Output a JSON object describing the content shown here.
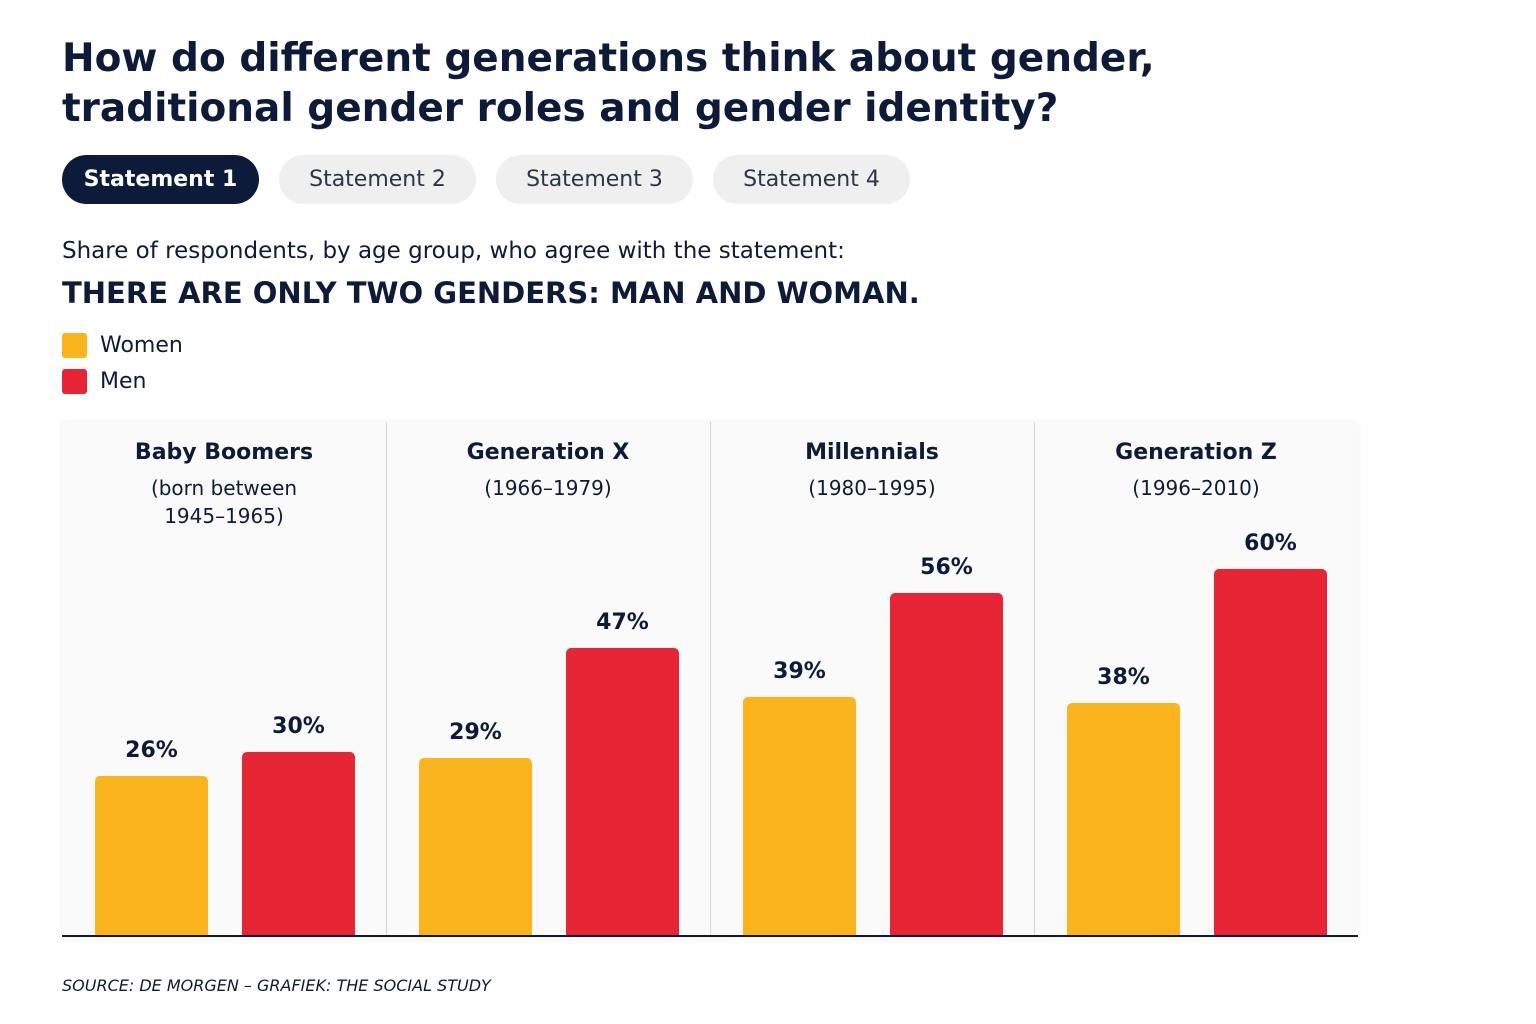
{
  "title": "How do different generations think about gender, traditional gender roles and gender identity?",
  "tabs": [
    "Statement 1",
    "Statement 2",
    "Statement 3",
    "Statement 4"
  ],
  "active_tab": 0,
  "chart_data": {
    "type": "bar",
    "subtitle": "Share of respondents, by age group, who agree with the statement:",
    "statement": "THERE ARE ONLY TWO GENDERS: MAN AND WOMAN.",
    "categories": [
      "Baby Boomers",
      "Generation X",
      "Millennials",
      "Generation Z"
    ],
    "category_notes": [
      "(born between 1945–1965)",
      "(1966–1979)",
      "(1980–1995)",
      "(1996–2010)"
    ],
    "series": [
      {
        "name": "Women",
        "color": "#fbb41c",
        "values": [
          26,
          29,
          39,
          38
        ],
        "value_labels": [
          "26%",
          "29%",
          "39%",
          "38%"
        ]
      },
      {
        "name": "Men",
        "color": "#e82535",
        "values": [
          30,
          47,
          56,
          60
        ],
        "value_labels": [
          "30%",
          "47%",
          "56%",
          "60%"
        ]
      }
    ]
  },
  "source": "SOURCE: DE MORGEN – GRAFIEK: THE SOCIAL STUDY"
}
